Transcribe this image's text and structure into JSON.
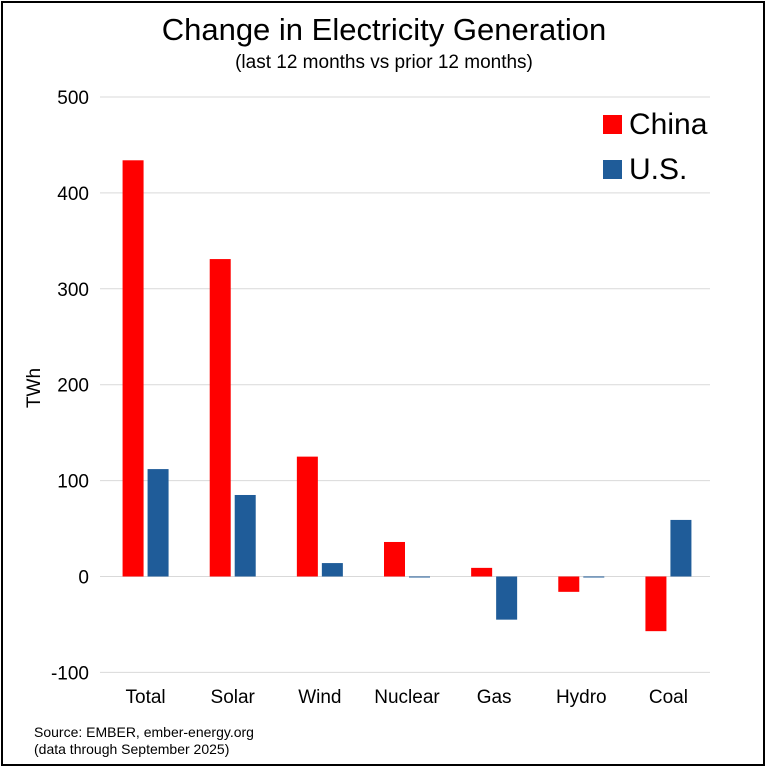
{
  "chart_data": {
    "type": "bar",
    "title": "Change in Electricity Generation",
    "subtitle": "(last 12 months vs prior 12 months)",
    "xlabel": "",
    "ylabel": "TWh",
    "ylim": [
      -100,
      500
    ],
    "yticks": [
      -100,
      0,
      100,
      200,
      300,
      400,
      500
    ],
    "grid": true,
    "legend_position": "top-right",
    "categories": [
      "Total",
      "Solar",
      "Wind",
      "Nuclear",
      "Gas",
      "Hydro",
      "Coal"
    ],
    "series": [
      {
        "name": "China",
        "color": "#ff0000",
        "values": [
          434,
          331,
          125,
          36,
          9,
          -16,
          -57
        ]
      },
      {
        "name": "U.S.",
        "color": "#1f5c99",
        "values": [
          112,
          85,
          14,
          -1,
          -45,
          0,
          59
        ]
      }
    ]
  },
  "source": {
    "line1": "Source: EMBER, ember-energy.org",
    "line2": "(data through September 2025)"
  }
}
